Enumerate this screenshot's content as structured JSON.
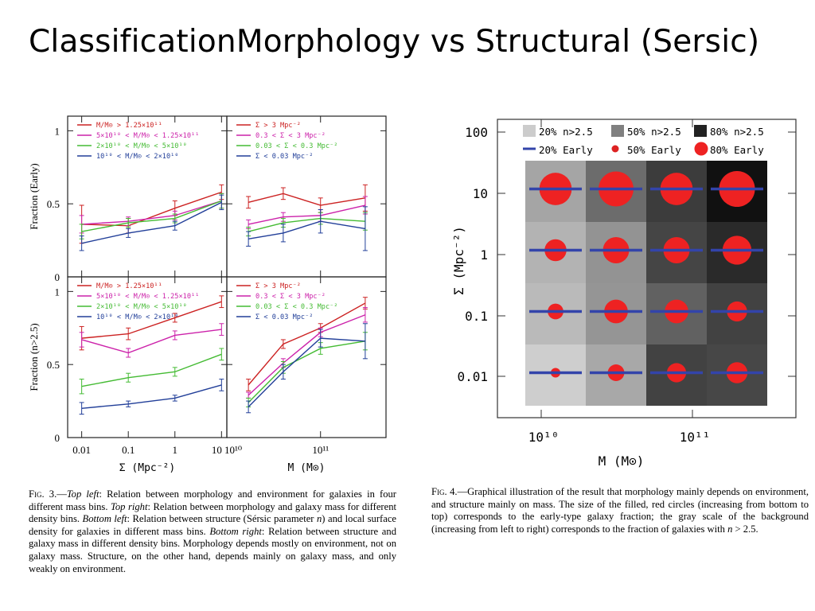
{
  "slide": {
    "title": "ClassificationMorphology vs Structural (Sersic)"
  },
  "fig3": {
    "caption_label": "Fig. 3.",
    "caption_parts": [
      {
        "t": "—"
      },
      {
        "t": "Top left",
        "i": true
      },
      {
        "t": ": Relation between morphology and environment for galaxies in four different mass bins. "
      },
      {
        "t": "Top right",
        "i": true
      },
      {
        "t": ": Relation between morphology and galaxy mass for different density bins. "
      },
      {
        "t": "Bottom left",
        "i": true
      },
      {
        "t": ": Relation between structure (Sérsic parameter "
      },
      {
        "t": "n",
        "i": true
      },
      {
        "t": ") and local surface density for galaxies in different mass bins. "
      },
      {
        "t": "Bottom right",
        "i": true
      },
      {
        "t": ": Relation between structure and galaxy mass in different density bins. Morphology depends mostly on environment, not on galaxy mass. Structure, on the other hand, depends mainly on galaxy mass, and only weakly on environment."
      }
    ],
    "ylabel_top": "Fraction (Early)",
    "ylabel_bottom": "Fraction (n>2.5)",
    "xlabel_left": "Σ (Mpc⁻²)",
    "xlabel_right": "M (M⊙)",
    "yticks": [
      "0",
      "0.5",
      "1"
    ],
    "xticks_left": [
      "0.01",
      "0.1",
      "1",
      "10"
    ],
    "xticks_right": [
      "10¹⁰",
      "10¹¹"
    ],
    "legend_mass": [
      {
        "label": "M/M⊙ > 1.25×10¹¹",
        "color": "#cc2222"
      },
      {
        "label": "5×10¹⁰ < M/M⊙ < 1.25×10¹¹",
        "color": "#cc22aa"
      },
      {
        "label": "2×10¹⁰ < M/M⊙ < 5×10¹⁰",
        "color": "#44bb33"
      },
      {
        "label": "10¹⁰ < M/M⊙ < 2×10¹⁰",
        "color": "#223f99"
      }
    ],
    "legend_density": [
      {
        "label": "Σ > 3 Mpc⁻²",
        "color": "#cc2222"
      },
      {
        "label": "0.3 < Σ < 3 Mpc⁻²",
        "color": "#cc22aa"
      },
      {
        "label": "0.03 < Σ < 0.3 Mpc⁻²",
        "color": "#44bb33"
      },
      {
        "label": "Σ < 0.03 Mpc⁻²",
        "color": "#223f99"
      }
    ]
  },
  "chart_data": [
    {
      "type": "line",
      "panel": "top-left",
      "x": [
        0.01,
        0.1,
        1,
        10
      ],
      "ylim": [
        0,
        1.1
      ],
      "xscale": "log",
      "ylabel": "Fraction (Early)",
      "xlabel": "",
      "series": [
        {
          "name": "M/M⊙ > 1.25×10¹¹",
          "color": "#cc2222",
          "values": [
            0.36,
            0.35,
            0.47,
            0.58
          ],
          "err": [
            0.13,
            0.05,
            0.05,
            0.05
          ]
        },
        {
          "name": "5×10¹⁰ < M/M⊙ < 1.25×10¹¹",
          "color": "#cc22aa",
          "values": [
            0.36,
            0.38,
            0.42,
            0.52
          ],
          "err": [
            0.06,
            0.03,
            0.03,
            0.05
          ]
        },
        {
          "name": "2×10¹⁰ < M/M⊙ < 5×10¹⁰",
          "color": "#44bb33",
          "values": [
            0.31,
            0.37,
            0.4,
            0.52
          ],
          "err": [
            0.05,
            0.03,
            0.03,
            0.05
          ]
        },
        {
          "name": "10¹⁰ < M/M⊙ < 2×10¹⁰",
          "color": "#223f99",
          "values": [
            0.23,
            0.3,
            0.35,
            0.51
          ],
          "err": [
            0.05,
            0.03,
            0.03,
            0.05
          ]
        }
      ]
    },
    {
      "type": "line",
      "panel": "top-right",
      "x": [
        17000000000.0,
        40000000000.0,
        100000000000.0,
        300000000000.0
      ],
      "ylim": [
        0,
        1.1
      ],
      "xscale": "log",
      "series": [
        {
          "name": "Σ > 3 Mpc⁻²",
          "color": "#cc2222",
          "values": [
            0.51,
            0.57,
            0.49,
            0.54
          ],
          "err": [
            0.04,
            0.04,
            0.05,
            0.09
          ]
        },
        {
          "name": "0.3 < Σ < 3 Mpc⁻²",
          "color": "#cc22aa",
          "values": [
            0.36,
            0.41,
            0.42,
            0.49
          ],
          "err": [
            0.03,
            0.03,
            0.04,
            0.06
          ]
        },
        {
          "name": "0.03 < Σ < 0.3 Mpc⁻²",
          "color": "#44bb33",
          "values": [
            0.31,
            0.37,
            0.4,
            0.38
          ],
          "err": [
            0.03,
            0.03,
            0.04,
            0.06
          ]
        },
        {
          "name": "Σ < 0.03 Mpc⁻²",
          "color": "#223f99",
          "values": [
            0.26,
            0.3,
            0.38,
            0.33
          ],
          "err": [
            0.05,
            0.06,
            0.08,
            0.15
          ]
        }
      ]
    },
    {
      "type": "line",
      "panel": "bottom-left",
      "x": [
        0.01,
        0.1,
        1,
        10
      ],
      "ylim": [
        0,
        1.1
      ],
      "xscale": "log",
      "ylabel": "Fraction (n>2.5)",
      "xlabel": "Σ (Mpc⁻²)",
      "series": [
        {
          "name": "M/M⊙ > 1.25×10¹¹",
          "color": "#cc2222",
          "values": [
            0.68,
            0.71,
            0.82,
            0.93
          ],
          "err": [
            0.08,
            0.04,
            0.03,
            0.04
          ]
        },
        {
          "name": "5×10¹⁰ < M/M⊙ < 1.25×10¹¹",
          "color": "#cc22aa",
          "values": [
            0.67,
            0.58,
            0.7,
            0.74
          ],
          "err": [
            0.05,
            0.03,
            0.03,
            0.04
          ]
        },
        {
          "name": "2×10¹⁰ < M/M⊙ < 5×10¹⁰",
          "color": "#44bb33",
          "values": [
            0.35,
            0.41,
            0.45,
            0.57
          ],
          "err": [
            0.05,
            0.03,
            0.03,
            0.04
          ]
        },
        {
          "name": "10¹⁰ < M/M⊙ < 2×10¹⁰",
          "color": "#223f99",
          "values": [
            0.2,
            0.23,
            0.27,
            0.36
          ],
          "err": [
            0.04,
            0.02,
            0.02,
            0.04
          ]
        }
      ]
    },
    {
      "type": "line",
      "panel": "bottom-right",
      "x": [
        17000000000.0,
        40000000000.0,
        100000000000.0,
        300000000000.0
      ],
      "ylim": [
        0,
        1.1
      ],
      "xscale": "log",
      "xlabel": "M (M⊙)",
      "series": [
        {
          "name": "Σ > 3 Mpc⁻²",
          "color": "#cc2222",
          "values": [
            0.36,
            0.64,
            0.75,
            0.92
          ],
          "err": [
            0.04,
            0.03,
            0.03,
            0.04
          ]
        },
        {
          "name": "0.3 < Σ < 3 Mpc⁻²",
          "color": "#cc22aa",
          "values": [
            0.29,
            0.51,
            0.72,
            0.84
          ],
          "err": [
            0.02,
            0.03,
            0.03,
            0.05
          ]
        },
        {
          "name": "0.03 < Σ < 0.3 Mpc⁻²",
          "color": "#44bb33",
          "values": [
            0.24,
            0.48,
            0.61,
            0.66
          ],
          "err": [
            0.03,
            0.04,
            0.04,
            0.06
          ]
        },
        {
          "name": "Σ < 0.03 Mpc⁻²",
          "color": "#223f99",
          "values": [
            0.21,
            0.45,
            0.68,
            0.66
          ],
          "err": [
            0.04,
            0.05,
            0.06,
            0.12
          ]
        }
      ]
    },
    {
      "type": "heatmap",
      "panel": "fig4",
      "xlabel": "M (M⊙)",
      "ylabel": "Σ (Mpc⁻²)",
      "x_ticks": [
        "10¹⁰",
        "10¹¹"
      ],
      "y_ticks": [
        "100",
        "10",
        "1",
        "0.1",
        "0.01"
      ],
      "legend": [
        {
          "label": "20% n>2.5",
          "kind": "swatch",
          "color": "#cccccc"
        },
        {
          "label": "50% n>2.5",
          "kind": "swatch",
          "color": "#808080"
        },
        {
          "label": "80% n>2.5",
          "kind": "swatch",
          "color": "#222222"
        },
        {
          "label": "20% Early",
          "kind": "dash",
          "color": "#3344aa"
        },
        {
          "label": "50% Early",
          "kind": "dot",
          "color": "#dd2222"
        },
        {
          "label": "80% Early",
          "kind": "dot",
          "color": "#ee2222"
        }
      ],
      "rows": [
        {
          "sigma": "10",
          "gray": [
            "#a5a5a5",
            "#6c6c6c",
            "#3c3c3c",
            "#111111"
          ],
          "early": [
            0.52,
            0.55,
            0.52,
            0.56
          ]
        },
        {
          "sigma": "1",
          "gray": [
            "#b3b3b3",
            "#939393",
            "#454545",
            "#2a2a2a"
          ],
          "early": [
            0.4,
            0.45,
            0.45,
            0.48
          ]
        },
        {
          "sigma": "0.1",
          "gray": [
            "#bababa",
            "#959595",
            "#616161",
            "#424242"
          ],
          "early": [
            0.33,
            0.42,
            0.42,
            0.38
          ]
        },
        {
          "sigma": "0.01",
          "gray": [
            "#cecece",
            "#a8a8a8",
            "#424242",
            "#474747"
          ],
          "early": [
            0.26,
            0.34,
            0.37,
            0.39
          ]
        }
      ]
    }
  ],
  "fig4": {
    "caption_label": "Fig. 4.",
    "caption_parts": [
      {
        "t": "—Graphical illustration of the result that morphology mainly depends on environment, and structure mainly on mass. The size of the filled, red circles (increasing from bottom to top) corresponds to the early-type galaxy fraction; the gray scale of the background (increasing from left to right) corresponds to the fraction of galaxies with "
      },
      {
        "t": "n",
        "i": true
      },
      {
        "t": " > 2.5."
      }
    ]
  }
}
